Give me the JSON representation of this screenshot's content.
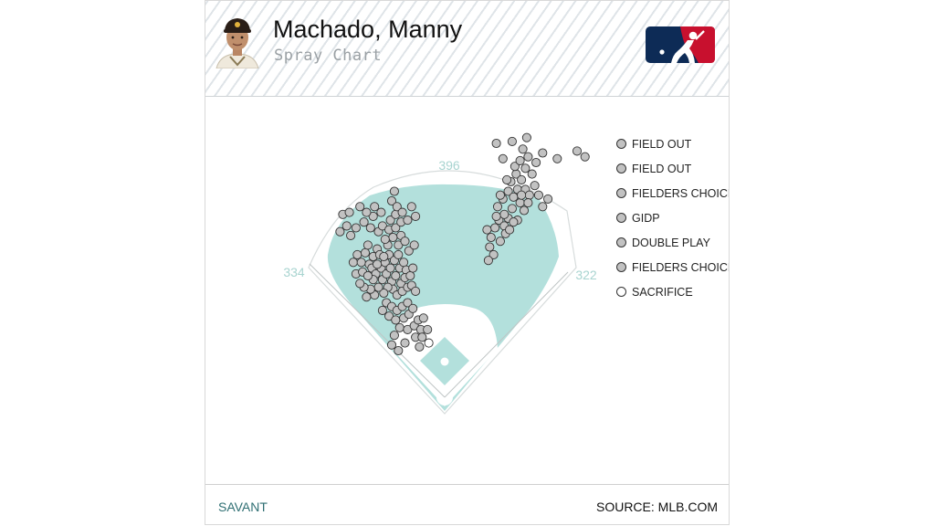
{
  "header": {
    "player_name": "Machado, Manny",
    "chart_label": "Spray Chart"
  },
  "footer": {
    "brand": "SAVANT",
    "source": "SOURCE: MLB.COM"
  },
  "colors": {
    "grass": "#b3e0dc",
    "infield": "#ffffff",
    "hit_dot": "#c2c2c2",
    "sacrifice_dot": "#ffffff",
    "logo_blue": "#0d2b56",
    "logo_red": "#c8102e"
  },
  "chart_data": {
    "type": "scatter",
    "title": "Spray Chart",
    "xlabel": "",
    "ylabel": "",
    "fence_distances": [
      "334",
      "396",
      "322"
    ],
    "legend_placement": "right",
    "legend": [
      {
        "label": "FIELD OUT",
        "fill": "#c2c2c2"
      },
      {
        "label": "FIELD OUT",
        "fill": "#c2c2c2"
      },
      {
        "label": "FIELDERS CHOICE O",
        "fill": "#c2c2c2"
      },
      {
        "label": "GIDP",
        "fill": "#c2c2c2"
      },
      {
        "label": "DOUBLE PLAY",
        "fill": "#c2c2c2"
      },
      {
        "label": "FIELDERS CHOICE",
        "fill": "#c2c2c2"
      },
      {
        "label": "SACRIFICE",
        "fill": "#ffffff"
      }
    ],
    "x_range": [
      -100,
      100
    ],
    "y_range": [
      0,
      150
    ],
    "points": [
      {
        "x": -69,
        "y": 75,
        "t": "out"
      },
      {
        "x": -66,
        "y": 79,
        "t": "out"
      },
      {
        "x": -63,
        "y": 75,
        "t": "out"
      },
      {
        "x": -60,
        "y": 80,
        "t": "out"
      },
      {
        "x": -58,
        "y": 84,
        "t": "out"
      },
      {
        "x": -67,
        "y": 69,
        "t": "out"
      },
      {
        "x": -62,
        "y": 70,
        "t": "out"
      },
      {
        "x": -57,
        "y": 74,
        "t": "out"
      },
      {
        "x": -54,
        "y": 78,
        "t": "out"
      },
      {
        "x": -51,
        "y": 82,
        "t": "out"
      },
      {
        "x": -49,
        "y": 79,
        "t": "out"
      },
      {
        "x": -55,
        "y": 72,
        "t": "out"
      },
      {
        "x": -52,
        "y": 69,
        "t": "out"
      },
      {
        "x": -48,
        "y": 72,
        "t": "out"
      },
      {
        "x": -45,
        "y": 75,
        "t": "out"
      },
      {
        "x": -42,
        "y": 79,
        "t": "out"
      },
      {
        "x": -47,
        "y": 66,
        "t": "out"
      },
      {
        "x": -44,
        "y": 69,
        "t": "out"
      },
      {
        "x": -41,
        "y": 72,
        "t": "out"
      },
      {
        "x": -38,
        "y": 76,
        "t": "out"
      },
      {
        "x": -35,
        "y": 79,
        "t": "out"
      },
      {
        "x": -40,
        "y": 65,
        "t": "out"
      },
      {
        "x": -37,
        "y": 68,
        "t": "out"
      },
      {
        "x": -34,
        "y": 72,
        "t": "out"
      },
      {
        "x": -31,
        "y": 75,
        "t": "out"
      },
      {
        "x": -29,
        "y": 71,
        "t": "out"
      },
      {
        "x": -33,
        "y": 64,
        "t": "out"
      },
      {
        "x": -30,
        "y": 67,
        "t": "out"
      },
      {
        "x": -26,
        "y": 68,
        "t": "out"
      },
      {
        "x": -24,
        "y": 72,
        "t": "out"
      },
      {
        "x": -39,
        "y": 61,
        "t": "out"
      },
      {
        "x": -36,
        "y": 58,
        "t": "out"
      },
      {
        "x": -32,
        "y": 60,
        "t": "out"
      },
      {
        "x": -28,
        "y": 62,
        "t": "out"
      },
      {
        "x": -25,
        "y": 63,
        "t": "out"
      },
      {
        "x": -22,
        "y": 60,
        "t": "out"
      },
      {
        "x": -43,
        "y": 62,
        "t": "out"
      },
      {
        "x": -46,
        "y": 59,
        "t": "out"
      },
      {
        "x": -50,
        "y": 62,
        "t": "out"
      },
      {
        "x": -53,
        "y": 58,
        "t": "out"
      },
      {
        "x": -56,
        "y": 61,
        "t": "out"
      },
      {
        "x": -59,
        "y": 57,
        "t": "out"
      },
      {
        "x": -61,
        "y": 62,
        "t": "out"
      },
      {
        "x": -64,
        "y": 64,
        "t": "out"
      },
      {
        "x": -44,
        "y": 54,
        "t": "out"
      },
      {
        "x": -40,
        "y": 52,
        "t": "out"
      },
      {
        "x": -36,
        "y": 50,
        "t": "out"
      },
      {
        "x": -32,
        "y": 52,
        "t": "out"
      },
      {
        "x": -28,
        "y": 54,
        "t": "out"
      },
      {
        "x": -47,
        "y": 50,
        "t": "out"
      },
      {
        "x": -42,
        "y": 47,
        "t": "out"
      },
      {
        "x": -37,
        "y": 45,
        "t": "out"
      },
      {
        "x": -31,
        "y": 46,
        "t": "out"
      },
      {
        "x": -27,
        "y": 48,
        "t": "out"
      },
      {
        "x": -24,
        "y": 51,
        "t": "out"
      },
      {
        "x": -34,
        "y": 41,
        "t": "out"
      },
      {
        "x": -28,
        "y": 40,
        "t": "out"
      },
      {
        "x": -23,
        "y": 42,
        "t": "out"
      },
      {
        "x": -20,
        "y": 45,
        "t": "out"
      },
      {
        "x": -18,
        "y": 40,
        "t": "out"
      },
      {
        "x": -22,
        "y": 36,
        "t": "out"
      },
      {
        "x": -17,
        "y": 36,
        "t": "out"
      },
      {
        "x": -13,
        "y": 40,
        "t": "out"
      },
      {
        "x": -16,
        "y": 46,
        "t": "out"
      },
      {
        "x": -38,
        "y": 37,
        "t": "out"
      },
      {
        "x": -40,
        "y": 32,
        "t": "out"
      },
      {
        "x": -35,
        "y": 29,
        "t": "out"
      },
      {
        "x": -30,
        "y": 33,
        "t": "out"
      },
      {
        "x": -12,
        "y": 33,
        "t": "sac"
      },
      {
        "x": -19,
        "y": 31,
        "t": "out"
      },
      {
        "x": -54,
        "y": 66,
        "t": "out"
      },
      {
        "x": -58,
        "y": 68,
        "t": "out"
      },
      {
        "x": -51,
        "y": 74,
        "t": "out"
      },
      {
        "x": -46,
        "y": 78,
        "t": "out"
      },
      {
        "x": -43,
        "y": 84,
        "t": "out"
      },
      {
        "x": -39,
        "y": 88,
        "t": "out"
      },
      {
        "x": -35,
        "y": 84,
        "t": "out"
      },
      {
        "x": -45,
        "y": 87,
        "t": "out"
      },
      {
        "x": -50,
        "y": 91,
        "t": "out"
      },
      {
        "x": -47,
        "y": 94,
        "t": "out"
      },
      {
        "x": -42,
        "y": 92,
        "t": "out"
      },
      {
        "x": -37,
        "y": 93,
        "t": "out"
      },
      {
        "x": -33,
        "y": 89,
        "t": "out"
      },
      {
        "x": -30,
        "y": 86,
        "t": "out"
      },
      {
        "x": -27,
        "y": 81,
        "t": "out"
      },
      {
        "x": -23,
        "y": 84,
        "t": "out"
      },
      {
        "x": -41,
        "y": 97,
        "t": "out"
      },
      {
        "x": -37,
        "y": 100,
        "t": "out"
      },
      {
        "x": -33,
        "y": 96,
        "t": "out"
      },
      {
        "x": -40,
        "y": 107,
        "t": "out"
      },
      {
        "x": -36,
        "y": 104,
        "t": "out"
      },
      {
        "x": -32,
        "y": 101,
        "t": "out"
      },
      {
        "x": -28,
        "y": 97,
        "t": "out"
      },
      {
        "x": -22,
        "y": 99,
        "t": "out"
      },
      {
        "x": -38,
        "y": 112,
        "t": "out"
      },
      {
        "x": -25,
        "y": 104,
        "t": "out"
      },
      {
        "x": -54,
        "y": 99,
        "t": "out"
      },
      {
        "x": -59,
        "y": 101,
        "t": "out"
      },
      {
        "x": -64,
        "y": 104,
        "t": "out"
      },
      {
        "x": -67,
        "y": 93,
        "t": "out"
      },
      {
        "x": -71,
        "y": 89,
        "t": "out"
      },
      {
        "x": -74,
        "y": 94,
        "t": "out"
      },
      {
        "x": -77,
        "y": 100,
        "t": "out"
      },
      {
        "x": -72,
        "y": 101,
        "t": "out"
      },
      {
        "x": -79,
        "y": 91,
        "t": "out"
      },
      {
        "x": -56,
        "y": 93,
        "t": "out"
      },
      {
        "x": -61,
        "y": 96,
        "t": "out"
      },
      {
        "x": -53,
        "y": 104,
        "t": "out"
      },
      {
        "x": -48,
        "y": 101,
        "t": "out"
      },
      {
        "x": 35,
        "y": 88,
        "t": "out"
      },
      {
        "x": 38,
        "y": 93,
        "t": "out"
      },
      {
        "x": 41,
        "y": 97,
        "t": "out"
      },
      {
        "x": 45,
        "y": 94,
        "t": "out"
      },
      {
        "x": 48,
        "y": 98,
        "t": "out"
      },
      {
        "x": 51,
        "y": 103,
        "t": "out"
      },
      {
        "x": 42,
        "y": 86,
        "t": "out"
      },
      {
        "x": 46,
        "y": 90,
        "t": "out"
      },
      {
        "x": 40,
        "y": 104,
        "t": "out"
      },
      {
        "x": 44,
        "y": 108,
        "t": "out"
      },
      {
        "x": 48,
        "y": 112,
        "t": "out"
      },
      {
        "x": 52,
        "y": 109,
        "t": "out"
      },
      {
        "x": 55,
        "y": 113,
        "t": "out"
      },
      {
        "x": 50,
        "y": 117,
        "t": "out"
      },
      {
        "x": 54,
        "y": 121,
        "t": "out"
      },
      {
        "x": 58,
        "y": 118,
        "t": "out"
      },
      {
        "x": 61,
        "y": 113,
        "t": "out"
      },
      {
        "x": 64,
        "y": 110,
        "t": "out"
      },
      {
        "x": 57,
        "y": 106,
        "t": "out"
      },
      {
        "x": 60,
        "y": 102,
        "t": "out"
      },
      {
        "x": 63,
        "y": 106,
        "t": "out"
      },
      {
        "x": 53,
        "y": 125,
        "t": "out"
      },
      {
        "x": 57,
        "y": 128,
        "t": "out"
      },
      {
        "x": 61,
        "y": 124,
        "t": "out"
      },
      {
        "x": 63,
        "y": 130,
        "t": "out"
      },
      {
        "x": 59,
        "y": 134,
        "t": "out"
      },
      {
        "x": 51,
        "y": 138,
        "t": "out"
      },
      {
        "x": 62,
        "y": 140,
        "t": "out"
      },
      {
        "x": 39,
        "y": 137,
        "t": "out"
      },
      {
        "x": 44,
        "y": 129,
        "t": "out"
      },
      {
        "x": 66,
        "y": 121,
        "t": "out"
      },
      {
        "x": 68,
        "y": 115,
        "t": "out"
      },
      {
        "x": 71,
        "y": 110,
        "t": "out"
      },
      {
        "x": 74,
        "y": 104,
        "t": "out"
      },
      {
        "x": 78,
        "y": 108,
        "t": "out"
      },
      {
        "x": 69,
        "y": 127,
        "t": "out"
      },
      {
        "x": 74,
        "y": 132,
        "t": "out"
      },
      {
        "x": 85,
        "y": 129,
        "t": "out"
      },
      {
        "x": 100,
        "y": 133,
        "t": "out"
      },
      {
        "x": 106,
        "y": 130,
        "t": "out"
      },
      {
        "x": 32,
        "y": 92,
        "t": "out"
      },
      {
        "x": 34,
        "y": 83,
        "t": "out"
      },
      {
        "x": 37,
        "y": 79,
        "t": "out"
      },
      {
        "x": 33,
        "y": 76,
        "t": "out"
      },
      {
        "x": 55,
        "y": 97,
        "t": "out"
      },
      {
        "x": 49,
        "y": 92,
        "t": "out"
      },
      {
        "x": 45,
        "y": 100,
        "t": "out"
      },
      {
        "x": 42,
        "y": 110,
        "t": "out"
      },
      {
        "x": 58,
        "y": 110,
        "t": "out"
      },
      {
        "x": 52,
        "y": 96,
        "t": "out"
      },
      {
        "x": 39,
        "y": 99,
        "t": "out"
      },
      {
        "x": 47,
        "y": 118,
        "t": "out"
      }
    ]
  }
}
